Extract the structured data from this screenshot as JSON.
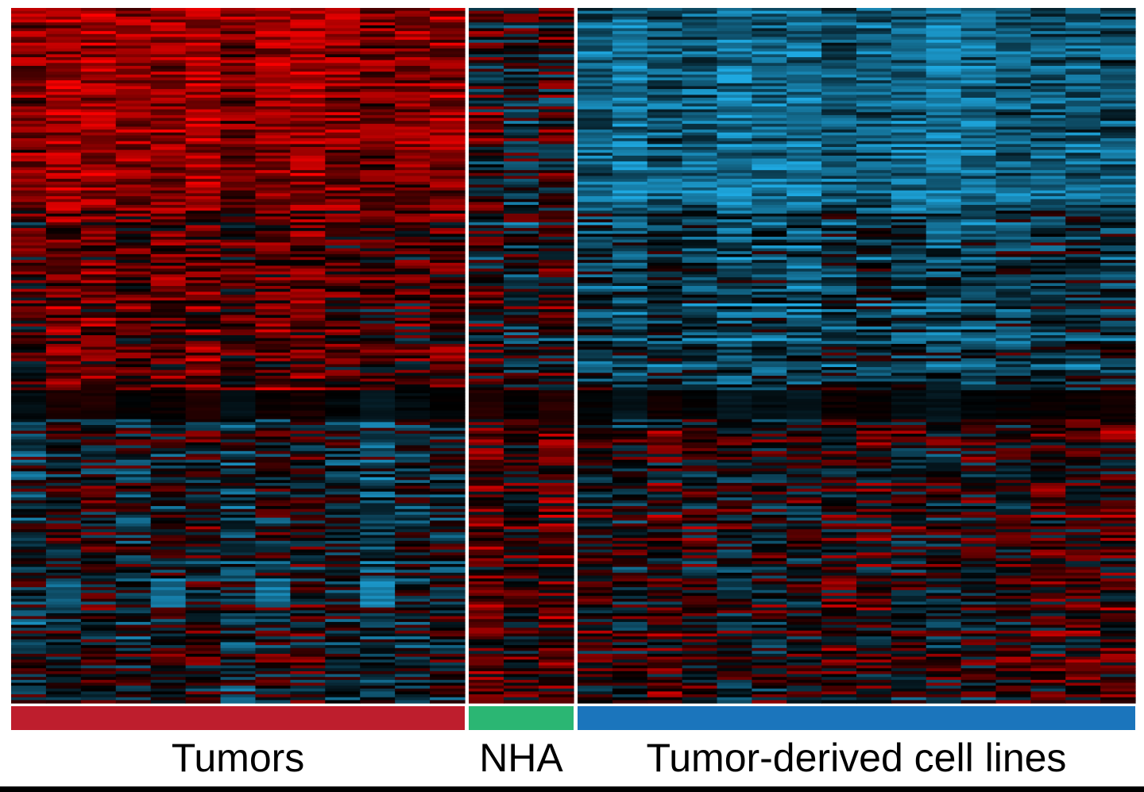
{
  "chart_data": {
    "type": "heatmap",
    "title": "",
    "xlabel": "",
    "ylabel": "",
    "color_scale": {
      "low": "#1ea8e0",
      "mid": "#000000",
      "high": "#ff0000"
    },
    "value_range": [
      -1,
      1
    ],
    "row_count": 240,
    "groups": [
      {
        "label": "Tumors",
        "color": "#be1e2d",
        "samples": 13,
        "profile": "tumor"
      },
      {
        "label": "NHA",
        "color": "#2bb673",
        "samples": 3,
        "profile": "nha"
      },
      {
        "label": "Tumor-derived cell lines",
        "color": "#1b75bc",
        "samples": 16,
        "profile": "cell"
      }
    ]
  }
}
